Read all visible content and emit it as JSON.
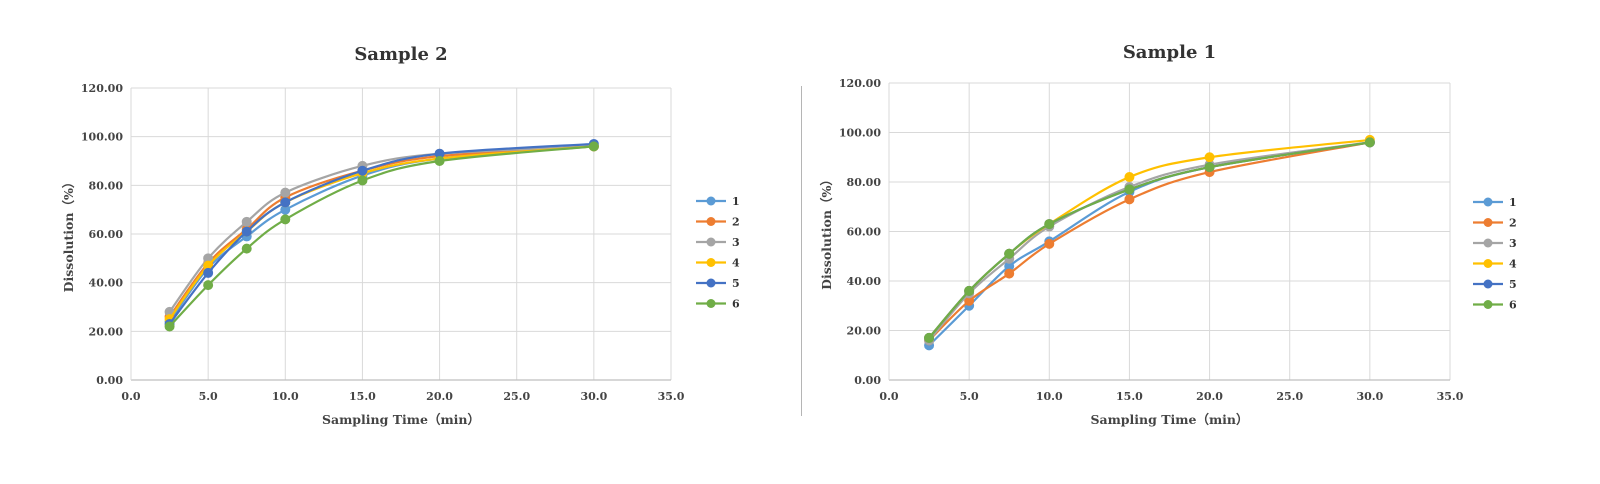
{
  "colors": {
    "series": [
      "#5b9bd5",
      "#ed7d31",
      "#a5a5a5",
      "#ffc000",
      "#4472c4",
      "#70ad47"
    ],
    "grid": "#d9d9d9",
    "axis": "#bfbfbf"
  },
  "chart_data": [
    {
      "type": "line",
      "title": "Sample 2",
      "xlabel": "Sampling Time（min）",
      "ylabel": "Dissolution（%）",
      "xlim": [
        0,
        35
      ],
      "ylim": [
        0,
        120
      ],
      "x_ticks": [
        "0.0",
        "5.0",
        "10.0",
        "15.0",
        "20.0",
        "25.0",
        "30.0",
        "35.0"
      ],
      "y_ticks": [
        "0.00",
        "20.00",
        "40.00",
        "60.00",
        "80.00",
        "100.00",
        "120.00"
      ],
      "grid": true,
      "legend": "right",
      "x": [
        2.5,
        5,
        7.5,
        10,
        15,
        20,
        30
      ],
      "series": [
        {
          "name": "1",
          "values": [
            24,
            46,
            59,
            70,
            84,
            91,
            96
          ]
        },
        {
          "name": "2",
          "values": [
            26,
            48,
            62,
            75,
            86,
            92,
            96
          ]
        },
        {
          "name": "3",
          "values": [
            28,
            50,
            65,
            77,
            88,
            93,
            96
          ]
        },
        {
          "name": "4",
          "values": [
            25,
            47,
            61,
            73,
            85,
            91,
            96
          ]
        },
        {
          "name": "5",
          "values": [
            23,
            44,
            61,
            73,
            86,
            93,
            97
          ]
        },
        {
          "name": "6",
          "values": [
            22,
            39,
            54,
            66,
            82,
            90,
            96
          ]
        }
      ]
    },
    {
      "type": "line",
      "title": "Sample 1",
      "xlabel": "Sampling Time（min）",
      "ylabel": "Dissolution（%）",
      "xlim": [
        0,
        35
      ],
      "ylim": [
        0,
        120
      ],
      "x_ticks": [
        "0.0",
        "5.0",
        "10.0",
        "15.0",
        "20.0",
        "25.0",
        "30.0",
        "35.0"
      ],
      "y_ticks": [
        "0.00",
        "20.00",
        "40.00",
        "60.00",
        "80.00",
        "100.00",
        "120.00"
      ],
      "grid": true,
      "legend": "right",
      "x": [
        2.5,
        5,
        7.5,
        10,
        15,
        20,
        30
      ],
      "series": [
        {
          "name": "1",
          "values": [
            14,
            30,
            46,
            56,
            76,
            86,
            96
          ]
        },
        {
          "name": "2",
          "values": [
            16,
            32,
            43,
            55,
            73,
            84,
            96
          ]
        },
        {
          "name": "3",
          "values": [
            16,
            35,
            49,
            62,
            78,
            87,
            96
          ]
        },
        {
          "name": "4",
          "values": [
            17,
            36,
            51,
            63,
            82,
            90,
            97
          ]
        },
        {
          "name": "5",
          "values": [
            17,
            36,
            51,
            63,
            77,
            86,
            96
          ]
        },
        {
          "name": "6",
          "values": [
            17,
            36,
            51,
            63,
            77,
            86,
            96
          ]
        }
      ]
    }
  ]
}
